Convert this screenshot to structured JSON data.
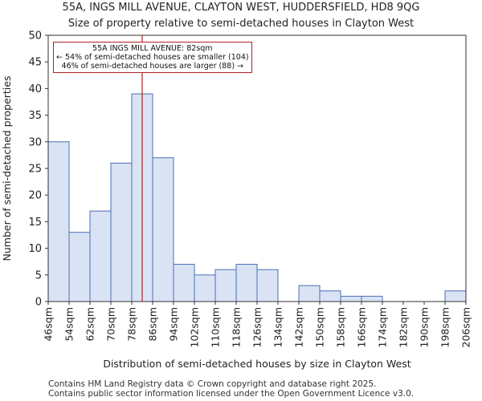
{
  "page": {
    "title_line1": "55A, INGS MILL AVENUE, CLAYTON WEST, HUDDERSFIELD, HD8 9QG",
    "title_line2": "Size of property relative to semi-detached houses in Clayton West",
    "footer_line1": "Contains HM Land Registry data © Crown copyright and database right 2025.",
    "footer_line2": "Contains public sector information licensed under the Open Government Licence v3.0."
  },
  "chart_data": {
    "type": "bar",
    "title": "Size of property relative to semi-detached houses in Clayton West",
    "xlabel": "Distribution of semi-detached houses by size in Clayton West",
    "ylabel": "Number of semi-detached properties",
    "bin_edges": [
      46,
      54,
      62,
      70,
      78,
      86,
      94,
      102,
      110,
      118,
      126,
      134,
      142,
      150,
      158,
      166,
      174,
      182,
      190,
      198,
      206
    ],
    "tick_labels": [
      "46sqm",
      "54sqm",
      "62sqm",
      "70sqm",
      "78sqm",
      "86sqm",
      "94sqm",
      "102sqm",
      "110sqm",
      "118sqm",
      "126sqm",
      "134sqm",
      "142sqm",
      "150sqm",
      "158sqm",
      "166sqm",
      "174sqm",
      "182sqm",
      "190sqm",
      "198sqm",
      "206sqm"
    ],
    "values": [
      30,
      13,
      17,
      26,
      39,
      27,
      7,
      5,
      6,
      7,
      6,
      0,
      3,
      2,
      1,
      1,
      0,
      0,
      0,
      2
    ],
    "ylim": [
      0,
      50
    ],
    "yticks": [
      0,
      5,
      10,
      15,
      20,
      25,
      30,
      35,
      40,
      45,
      50
    ],
    "grid": false,
    "bar_color": "#dae3f3",
    "bar_edge_color": "#4a6fb5",
    "marker": {
      "value": 82,
      "color": "#b22222",
      "label_line1": "55A INGS MILL AVENUE: 82sqm",
      "label_line2": "← 54% of semi-detached houses are smaller (104)",
      "label_line3": "46% of semi-detached houses are larger (88) →"
    }
  }
}
